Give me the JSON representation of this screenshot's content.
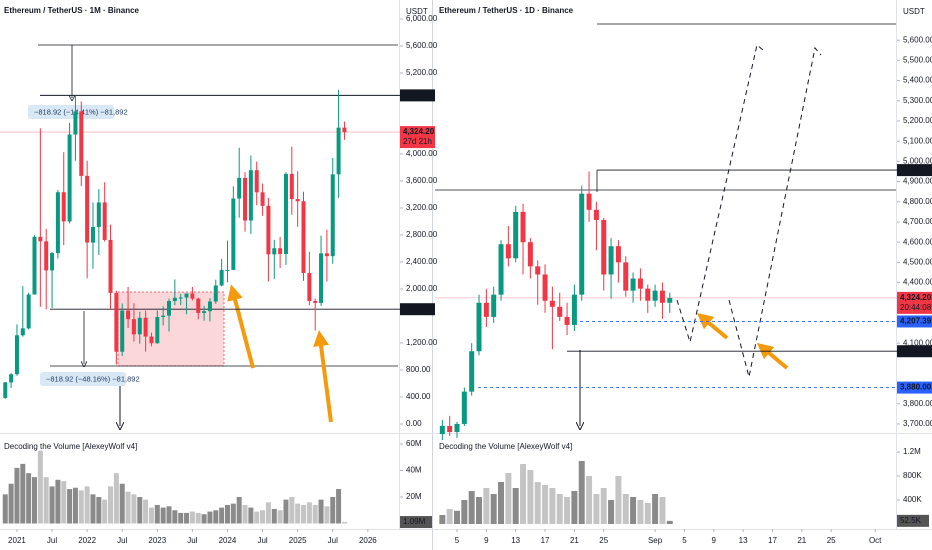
{
  "chart_data": [
    {
      "type": "candlestick",
      "title": "Ethereum / TetherUS · 1M · Binance",
      "unit": "USDT",
      "up_color": "#089981",
      "down_color": "#f23645",
      "open": [
        386,
        616,
        737,
        1314,
        1417,
        1918,
        2773,
        2706,
        2275,
        2531,
        3433,
        3001,
        4288,
        4631,
        3676,
        2688,
        2919,
        3282,
        2726,
        1942,
        1071,
        1680,
        1553,
        1328,
        1573,
        1295,
        1196,
        1585,
        1605,
        1822,
        1870,
        1874,
        1934,
        1857,
        1645,
        1671,
        1814,
        2052,
        2282,
        2283,
        3340,
        3646,
        3014,
        3760,
        3432,
        3232,
        2513,
        2603,
        2518,
        3705,
        3332,
        3300,
        2237,
        1822,
        1793,
        2528,
        2486,
        3698,
        4390
      ],
      "high": [
        622,
        755,
        1476,
        2041,
        1943,
        2797,
        4380,
        2891,
        2550,
        3466,
        4027,
        4460,
        4868,
        4778,
        3900,
        3282,
        3479,
        3581,
        2955,
        1974,
        1786,
        2030,
        1789,
        1663,
        1679,
        1354,
        1680,
        1743,
        1857,
        2141,
        1928,
        1928,
        2030,
        1870,
        1750,
        1865,
        2137,
        2445,
        2718,
        3522,
        4093,
        3730,
        3977,
        3887,
        3562,
        3350,
        2728,
        2770,
        3730,
        4107,
        3744,
        3440,
        2550,
        1860,
        2790,
        2880,
        3940,
        4950,
        4480
      ],
      "low": [
        373,
        532,
        715,
        1293,
        1400,
        1925,
        1736,
        1700,
        1719,
        2450,
        2651,
        2970,
        3900,
        3524,
        2159,
        2300,
        2504,
        2704,
        1700,
        880,
        1006,
        1422,
        1220,
        1190,
        1073,
        1150,
        1190,
        1461,
        1370,
        1760,
        1760,
        1626,
        1830,
        1550,
        1530,
        1520,
        1780,
        2040,
        2100,
        2280,
        3056,
        2850,
        2817,
        3240,
        3086,
        2111,
        2150,
        2310,
        2357,
        3100,
        2920,
        2120,
        1760,
        1385,
        1750,
        2111,
        2373,
        3350,
        4210
      ],
      "close": [
        616,
        737,
        1314,
        1417,
        1918,
        2773,
        2706,
        2275,
        2531,
        3433,
        3001,
        4288,
        4631,
        3676,
        2688,
        2919,
        3282,
        2726,
        1942,
        1071,
        1680,
        1553,
        1328,
        1573,
        1295,
        1196,
        1585,
        1605,
        1822,
        1870,
        1874,
        1934,
        1857,
        1645,
        1671,
        1814,
        2052,
        2282,
        2283,
        3340,
        3646,
        3014,
        3760,
        3432,
        3232,
        2513,
        2603,
        2518,
        3705,
        3332,
        3300,
        2237,
        1822,
        1793,
        2528,
        2486,
        3698,
        4390,
        4324
      ],
      "xlim": [
        -0.9,
        67.5
      ],
      "xticks": [
        {
          "value": 2,
          "label": "2021"
        },
        {
          "value": 8,
          "label": "Jul"
        },
        {
          "value": 14,
          "label": "2022"
        },
        {
          "value": 20,
          "label": "Jul"
        },
        {
          "value": 26,
          "label": "2023"
        },
        {
          "value": 32,
          "label": "Jul"
        },
        {
          "value": 38,
          "label": "2024"
        },
        {
          "value": 44,
          "label": "Jul"
        },
        {
          "value": 50,
          "label": "2025"
        },
        {
          "value": 56,
          "label": "Jul"
        },
        {
          "value": 62,
          "label": "2026"
        }
      ],
      "ylim": [
        -89,
        6281
      ],
      "yticks": [
        {
          "value": 6000,
          "label": "6,000.00"
        },
        {
          "value": 5600,
          "label": "5,600.00"
        },
        {
          "value": 5200,
          "label": "5,200.00"
        },
        {
          "value": 4000,
          "label": "4,000.00"
        },
        {
          "value": 3600,
          "label": "3,600.00"
        },
        {
          "value": 3200,
          "label": "3,200.00"
        },
        {
          "value": 2800,
          "label": "2,800.00"
        },
        {
          "value": 2400,
          "label": "2,400.00"
        },
        {
          "value": 2000,
          "label": "2,000.00"
        },
        {
          "value": 1200,
          "label": "1,200.00"
        },
        {
          "value": 800,
          "label": "800.00"
        },
        {
          "value": 400,
          "label": "400.00"
        },
        {
          "value": 0,
          "label": "0.00"
        }
      ],
      "price_labels": [
        {
          "value": 4868,
          "label": "4,868.00",
          "color": "#131722",
          "line": "solid"
        },
        {
          "value": 4324.2,
          "label": "4,324.20",
          "countdown": "27d 21h",
          "color": "#f23645",
          "line": "solid"
        },
        {
          "value": 1700.48,
          "label": "1,700.48",
          "color": "#131722",
          "line": "solid"
        }
      ],
      "annotations": [
        "−818.92 (−14.41%) −81,892",
        "−818.92 (−48.16%) −81,892"
      ],
      "volume": {
        "title": "Decoding the Volume [AlexeyWolf v4]",
        "values": [
          22,
          30,
          42,
          45,
          38,
          35,
          55,
          35,
          28,
          33,
          32,
          26,
          27,
          25,
          28,
          22,
          20,
          18,
          28,
          38,
          30,
          24,
          22,
          20,
          18,
          12,
          14,
          12,
          13,
          10,
          8,
          8,
          9,
          8,
          7,
          9,
          10,
          12,
          14,
          15,
          20,
          14,
          12,
          9,
          10,
          16,
          11,
          10,
          18,
          20,
          15,
          14,
          16,
          14,
          18,
          13,
          20,
          26,
          1.09
        ],
        "ylim": [
          -3.4,
          65.3
        ],
        "yticks": [
          {
            "value": 60,
            "label": "60M"
          },
          {
            "value": 40,
            "label": "40M"
          },
          {
            "value": 20,
            "label": "20M"
          }
        ],
        "current": {
          "value": 1.09,
          "label": "1.09M"
        }
      }
    },
    {
      "type": "candlestick",
      "title": "Ethereum / TetherUS · 1D · Binance",
      "unit": "USDT",
      "up_color": "#089981",
      "down_color": "#f23645",
      "open": [
        3650,
        3690,
        3660,
        3700,
        3860,
        4060,
        4300,
        4230,
        4340,
        4590,
        4520,
        4750,
        4600,
        4480,
        4440,
        4310,
        4280,
        4230,
        4190,
        4340,
        4840,
        4760,
        4710,
        4440,
        4580,
        4500,
        4360,
        4420,
        4370,
        4310,
        4360,
        4300
      ],
      "high": [
        3720,
        3740,
        3710,
        3880,
        4100,
        4340,
        4370,
        4380,
        4610,
        4680,
        4780,
        4790,
        4620,
        4510,
        4490,
        4380,
        4350,
        4300,
        4390,
        4880,
        4950,
        4800,
        4720,
        4620,
        4610,
        4530,
        4450,
        4470,
        4390,
        4390,
        4400,
        4350
      ],
      "low": [
        3620,
        3640,
        3630,
        3690,
        3840,
        4040,
        4180,
        4200,
        4310,
        4480,
        4500,
        4440,
        4420,
        4290,
        4250,
        4070,
        4210,
        4140,
        4160,
        4310,
        4700,
        4560,
        4360,
        4320,
        4400,
        4330,
        4300,
        4310,
        4250,
        4280,
        4220,
        4250
      ],
      "close": [
        3690,
        3660,
        3700,
        3860,
        4060,
        4300,
        4230,
        4340,
        4590,
        4520,
        4750,
        4600,
        4480,
        4440,
        4310,
        4280,
        4230,
        4190,
        4340,
        4840,
        4760,
        4710,
        4440,
        4580,
        4500,
        4360,
        4420,
        4370,
        4310,
        4360,
        4300,
        4324
      ],
      "xlim": [
        -1,
        61.7
      ],
      "xticks": [
        {
          "value": 2,
          "label": "5"
        },
        {
          "value": 6,
          "label": "9"
        },
        {
          "value": 10,
          "label": "13"
        },
        {
          "value": 14,
          "label": "17"
        },
        {
          "value": 18,
          "label": "21"
        },
        {
          "value": 22,
          "label": "25"
        },
        {
          "value": 29,
          "label": "Sep"
        },
        {
          "value": 33,
          "label": "5"
        },
        {
          "value": 37,
          "label": "9"
        },
        {
          "value": 41,
          "label": "13"
        },
        {
          "value": 45,
          "label": "17"
        },
        {
          "value": 49,
          "label": "21"
        },
        {
          "value": 53,
          "label": "25"
        },
        {
          "value": 59,
          "label": "Oct"
        }
      ],
      "ylim": [
        3670,
        5799
      ],
      "yticks": [
        {
          "value": 5600,
          "label": "5,600.00"
        },
        {
          "value": 5500,
          "label": "5,500.00"
        },
        {
          "value": 5400,
          "label": "5,400.00"
        },
        {
          "value": 5300,
          "label": "5,300.00"
        },
        {
          "value": 5200,
          "label": "5,200.00"
        },
        {
          "value": 5100,
          "label": "5,100.00"
        },
        {
          "value": 5000,
          "label": "5,000.00"
        },
        {
          "value": 4900,
          "label": "4,900.00"
        },
        {
          "value": 4800,
          "label": "4,800.00"
        },
        {
          "value": 4700,
          "label": "4,700.00"
        },
        {
          "value": 4600,
          "label": "4,600.00"
        },
        {
          "value": 4500,
          "label": "4,500.00"
        },
        {
          "value": 4400,
          "label": "4,400.00"
        },
        {
          "value": 4100,
          "label": "4,100.00"
        },
        {
          "value": 3800,
          "label": "3,800.00"
        },
        {
          "value": 3700,
          "label": "3,700.00"
        }
      ],
      "price_labels": [
        {
          "value": 4956.78,
          "label": "4,956.78",
          "color": "#131722",
          "line": "solid"
        },
        {
          "value": 4324.2,
          "label": "4,324.20",
          "countdown": "20:44:08",
          "color": "#f23645",
          "line": "solid"
        },
        {
          "value": 4207.39,
          "label": "4,207.39",
          "color": "#2962ff",
          "line": "dashed"
        },
        {
          "value": 4060,
          "label": "4,060.00",
          "color": "#131722",
          "line": "solid"
        },
        {
          "value": 3880,
          "label": "3,880.00",
          "color": "#2962ff",
          "line": "dashed"
        }
      ],
      "volume": {
        "title": "Decoding the Volume [AlexeyWolf v4]",
        "values": [
          150000,
          250000,
          220000,
          400000,
          550000,
          450000,
          600000,
          500000,
          700000,
          850000,
          600000,
          1000000,
          900000,
          700000,
          650000,
          600000,
          500000,
          450000,
          550000,
          1050000,
          800000,
          500000,
          600000,
          400000,
          800000,
          500000,
          450000,
          400000,
          350000,
          500000,
          450000,
          52500
        ],
        "ylim": [
          -66667,
          1450000
        ],
        "yticks": [
          {
            "value": 1200000,
            "label": "1.2M"
          },
          {
            "value": 800000,
            "label": "800K"
          },
          {
            "value": 400000,
            "label": "400K"
          }
        ],
        "current": {
          "value": 52500,
          "label": "52.5K"
        }
      }
    }
  ]
}
